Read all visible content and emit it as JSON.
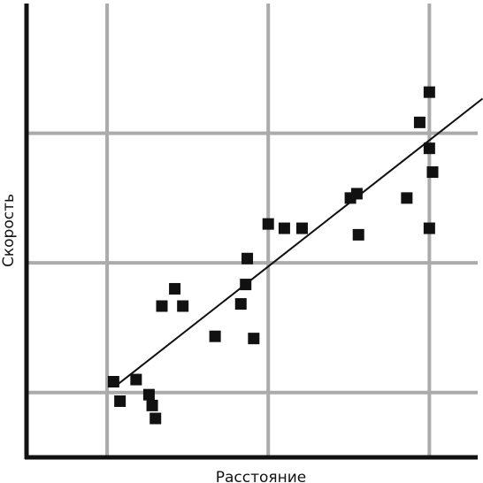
{
  "chart_data": {
    "type": "scatter",
    "xlabel": "Расстояние",
    "ylabel": "Скорость",
    "grid": true,
    "xlim": [
      0,
      28
    ],
    "ylim": [
      0,
      21
    ],
    "xgrid": [
      5,
      15,
      25
    ],
    "ygrid": [
      3,
      9,
      15
    ],
    "colors": {
      "grid": "#ababab",
      "axis": "#111111",
      "points": "#111111",
      "trend": "#111111"
    },
    "points": [
      {
        "x": 5.4,
        "y": 3.5
      },
      {
        "x": 5.8,
        "y": 2.6
      },
      {
        "x": 6.8,
        "y": 3.6
      },
      {
        "x": 7.6,
        "y": 2.9
      },
      {
        "x": 7.8,
        "y": 2.4
      },
      {
        "x": 8.0,
        "y": 1.8
      },
      {
        "x": 8.4,
        "y": 7.0
      },
      {
        "x": 9.2,
        "y": 7.8
      },
      {
        "x": 9.7,
        "y": 7.0
      },
      {
        "x": 11.7,
        "y": 5.6
      },
      {
        "x": 13.3,
        "y": 7.1
      },
      {
        "x": 13.6,
        "y": 8.0
      },
      {
        "x": 13.7,
        "y": 9.2
      },
      {
        "x": 14.1,
        "y": 5.5
      },
      {
        "x": 15.0,
        "y": 10.8
      },
      {
        "x": 16.0,
        "y": 10.6
      },
      {
        "x": 17.1,
        "y": 10.6
      },
      {
        "x": 20.1,
        "y": 12.0
      },
      {
        "x": 20.5,
        "y": 12.2
      },
      {
        "x": 20.6,
        "y": 10.3
      },
      {
        "x": 23.6,
        "y": 12.0
      },
      {
        "x": 24.4,
        "y": 15.5
      },
      {
        "x": 25.0,
        "y": 16.9
      },
      {
        "x": 25.0,
        "y": 14.3
      },
      {
        "x": 25.0,
        "y": 10.6
      },
      {
        "x": 25.2,
        "y": 13.2
      }
    ],
    "trendline": {
      "x": [
        5.7,
        28.3
      ],
      "y": [
        3.4,
        16.6
      ]
    }
  }
}
